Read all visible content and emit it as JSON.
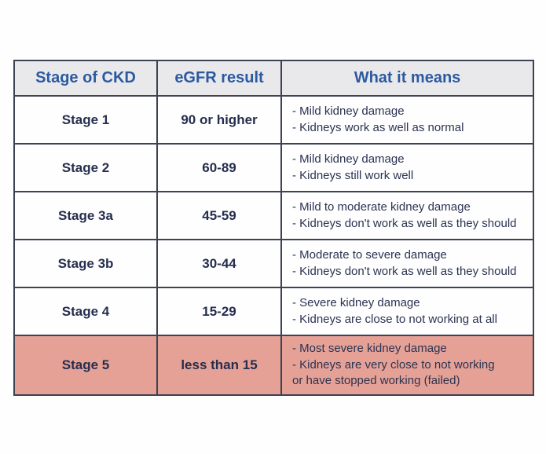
{
  "colors": {
    "page_bg": "#fefefe",
    "header_bg": "#e9e9ec",
    "header_text": "#2c5aa0",
    "body_text": "#252e4f",
    "meaning_text": "#2b3352",
    "border": "#3d4254",
    "stage5_highlight_bg": "#e5a196"
  },
  "table": {
    "headers": {
      "stage": "Stage of CKD",
      "egfr": "eGFR result",
      "meaning": "What it means"
    },
    "rows": [
      {
        "stage": "Stage 1",
        "egfr": "90 or higher",
        "meaning": [
          "- Mild kidney damage",
          "- Kidneys work as well as normal"
        ],
        "highlighted": false
      },
      {
        "stage": "Stage 2",
        "egfr": "60-89",
        "meaning": [
          "- Mild kidney damage",
          "- Kidneys still work well"
        ],
        "highlighted": false
      },
      {
        "stage": "Stage 3a",
        "egfr": "45-59",
        "meaning": [
          "- Mild to moderate kidney damage",
          "- Kidneys don't work as well as they should"
        ],
        "highlighted": false
      },
      {
        "stage": "Stage 3b",
        "egfr": "30-44",
        "meaning": [
          "- Moderate to severe damage",
          "- Kidneys don't work as well as they should"
        ],
        "highlighted": false
      },
      {
        "stage": "Stage 4",
        "egfr": "15-29",
        "meaning": [
          "- Severe kidney damage",
          "- Kidneys are close to not working at all"
        ],
        "highlighted": false
      },
      {
        "stage": "Stage 5",
        "egfr": "less than 15",
        "meaning": [
          "- Most severe kidney damage",
          "- Kidneys are very close to not working",
          "or have stopped working (failed)"
        ],
        "highlighted": true
      }
    ]
  }
}
